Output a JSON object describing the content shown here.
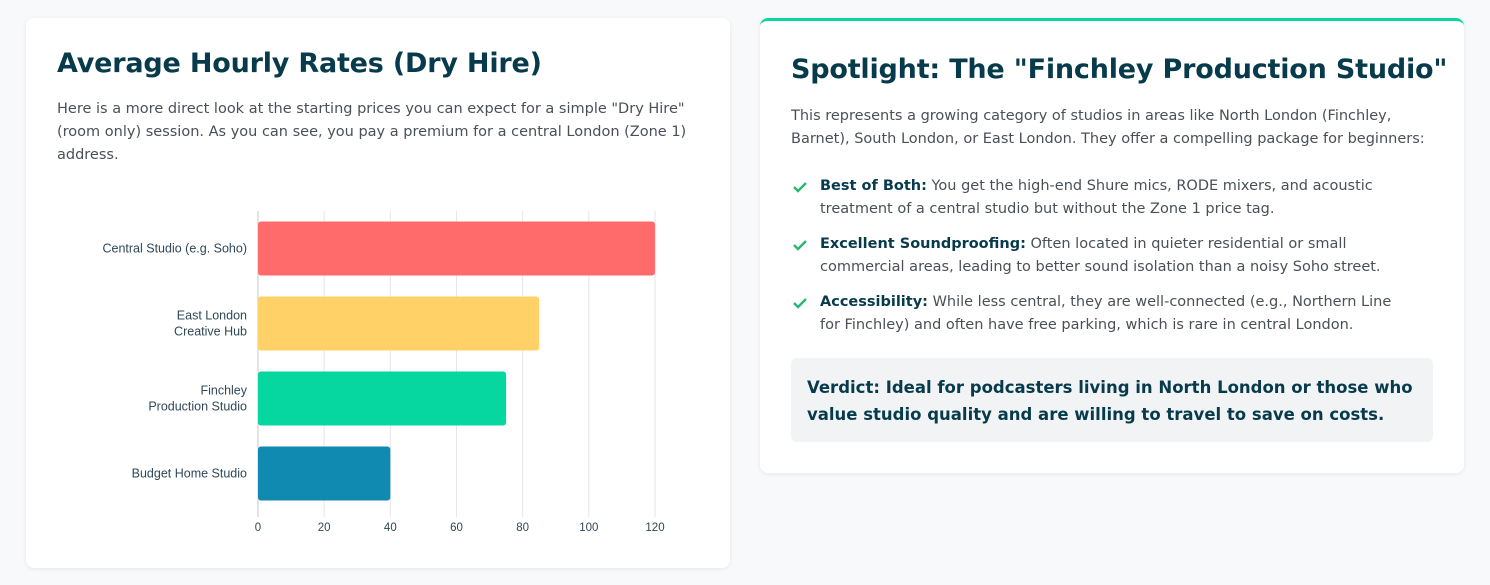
{
  "left": {
    "title": "Average Hourly Rates (Dry Hire)",
    "description": "Here is a more direct look at the starting prices you can expect for a simple \"Dry Hire\" (room only) session. As you can see, you pay a premium for a central London (Zone 1) address.",
    "chart_data": {
      "type": "hbar",
      "categories": [
        "Central Studio (e.g. Soho)",
        [
          "East London",
          "Creative Hub"
        ],
        [
          "Finchley",
          "Production Studio"
        ],
        "Budget Home Studio"
      ],
      "values": [
        120,
        85,
        75,
        40
      ],
      "colors": [
        "#ff6b6b",
        "#ffd166",
        "#06d6a0",
        "#118ab2"
      ],
      "xlim": [
        0,
        120
      ],
      "xticks": [
        0,
        20,
        40,
        60,
        80,
        100,
        120
      ],
      "grid": true
    }
  },
  "right": {
    "title": "Spotlight: The \"Finchley Production Studio\"",
    "intro": "This represents a growing category of studios in areas like North London (Finchley, Barnet), South London, or East London. They offer a compelling package for beginners:",
    "items": [
      {
        "label": "Best of Both:",
        "text": "You get the high-end Shure mics, RODE mixers, and acoustic treatment of a central studio but without the Zone 1 price tag."
      },
      {
        "label": "Excellent Soundproofing:",
        "text": "Often located in quieter residential or small commercial areas, leading to better sound isolation than a noisy Soho street."
      },
      {
        "label": "Accessibility:",
        "text": "While less central, they are well-connected (e.g., Northern Line for Finchley) and often have free parking, which is rare in central London."
      }
    ],
    "verdict": {
      "label": "Verdict:",
      "text": "Ideal for podcasters living in North London or those who value studio quality and are willing to travel to save on costs."
    }
  }
}
